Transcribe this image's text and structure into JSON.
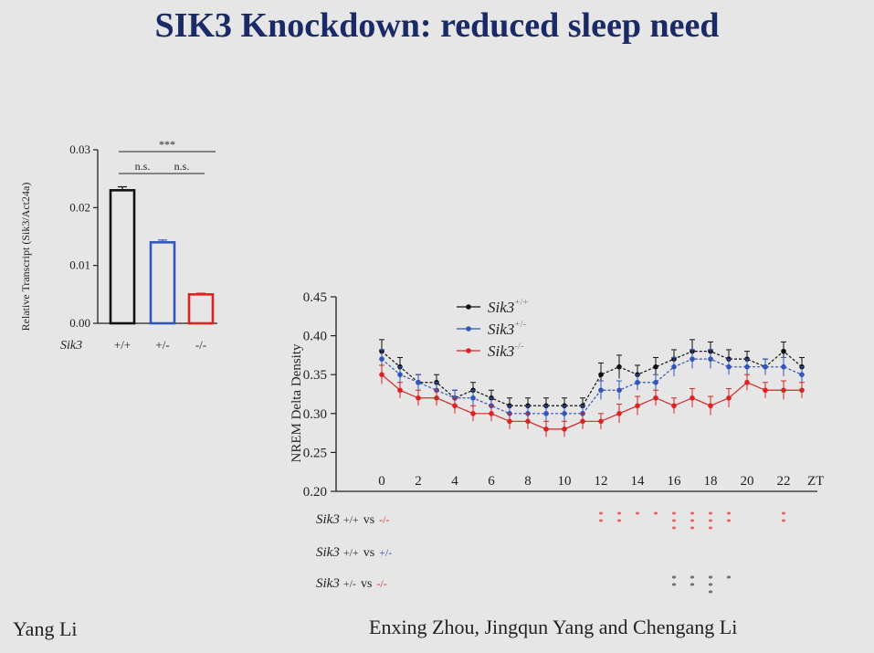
{
  "slide": {
    "title": "SIK3 Knockdown: reduced sleep need",
    "presenter": "Yang Li",
    "authors": "Enxing Zhou, Jingqun Yang and Chengang Li"
  },
  "chart_data": [
    {
      "type": "bar",
      "ylabel": "Relative Transcript (Sik3/Act24a)",
      "xlabel": "Sik3",
      "categories": [
        "+/+",
        "+/-",
        "-/-"
      ],
      "values": [
        0.023,
        0.014,
        0.005
      ],
      "errors": [
        0.0006,
        0.0004,
        0.0002
      ],
      "colors": [
        "#111111",
        "#3355bb",
        "#dd2222"
      ],
      "ylim": [
        0,
        0.03
      ],
      "yticks": [
        "0.00",
        "0.01",
        "0.02",
        "0.03"
      ],
      "significance": [
        {
          "pair": [
            0,
            2
          ],
          "label": "***"
        },
        {
          "pair": [
            0,
            1
          ],
          "label": "n.s."
        },
        {
          "pair": [
            1,
            2
          ],
          "label": "n.s."
        }
      ]
    },
    {
      "type": "line",
      "ylabel": "NREM Delta Density",
      "xlabel": "ZT",
      "xlim": [
        0,
        23
      ],
      "ylim": [
        0.2,
        0.45
      ],
      "xticks": [
        "0",
        "2",
        "4",
        "6",
        "8",
        "10",
        "12",
        "14",
        "16",
        "18",
        "20",
        "22"
      ],
      "yticks": [
        "0.20",
        "0.25",
        "0.30",
        "0.35",
        "0.40",
        "0.45"
      ],
      "x": [
        0,
        1,
        2,
        3,
        4,
        5,
        6,
        7,
        8,
        9,
        10,
        11,
        12,
        13,
        14,
        15,
        16,
        17,
        18,
        19,
        20,
        21,
        22,
        23
      ],
      "series": [
        {
          "name": "Sik3",
          "superscript": "+/+",
          "color": "#111111",
          "values": [
            0.38,
            0.36,
            0.34,
            0.34,
            0.32,
            0.33,
            0.32,
            0.31,
            0.31,
            0.31,
            0.31,
            0.31,
            0.35,
            0.36,
            0.35,
            0.36,
            0.37,
            0.38,
            0.38,
            0.37,
            0.37,
            0.36,
            0.38,
            0.36
          ],
          "errors": [
            0.015,
            0.012,
            0.01,
            0.01,
            0.01,
            0.01,
            0.01,
            0.01,
            0.01,
            0.01,
            0.01,
            0.01,
            0.015,
            0.015,
            0.012,
            0.012,
            0.012,
            0.015,
            0.012,
            0.012,
            0.01,
            0.01,
            0.012,
            0.012
          ]
        },
        {
          "name": "Sik3",
          "superscript": "+/-",
          "color": "#3355bb",
          "values": [
            0.37,
            0.35,
            0.34,
            0.33,
            0.32,
            0.32,
            0.31,
            0.3,
            0.3,
            0.3,
            0.3,
            0.3,
            0.33,
            0.33,
            0.34,
            0.34,
            0.36,
            0.37,
            0.37,
            0.36,
            0.36,
            0.36,
            0.36,
            0.35
          ],
          "errors": [
            0.012,
            0.01,
            0.01,
            0.01,
            0.01,
            0.01,
            0.01,
            0.01,
            0.01,
            0.01,
            0.01,
            0.01,
            0.012,
            0.012,
            0.01,
            0.01,
            0.012,
            0.012,
            0.012,
            0.01,
            0.01,
            0.01,
            0.012,
            0.01
          ]
        },
        {
          "name": "Sik3",
          "superscript": "-/-",
          "color": "#dd2222",
          "values": [
            0.35,
            0.33,
            0.32,
            0.32,
            0.31,
            0.3,
            0.3,
            0.29,
            0.29,
            0.28,
            0.28,
            0.29,
            0.29,
            0.3,
            0.31,
            0.32,
            0.31,
            0.32,
            0.31,
            0.32,
            0.34,
            0.33,
            0.33,
            0.33
          ],
          "errors": [
            0.012,
            0.01,
            0.01,
            0.01,
            0.01,
            0.01,
            0.01,
            0.01,
            0.01,
            0.01,
            0.01,
            0.01,
            0.01,
            0.012,
            0.012,
            0.01,
            0.01,
            0.012,
            0.012,
            0.012,
            0.01,
            0.01,
            0.012,
            0.01
          ]
        }
      ],
      "comparisons": [
        {
          "label": {
            "g1": "+/+",
            "vs": "vs",
            "g2": "-/-",
            "name": "Sik3"
          },
          "stars": [
            {
              "x": 12,
              "n": 2
            },
            {
              "x": 13,
              "n": 2
            },
            {
              "x": 14,
              "n": 1
            },
            {
              "x": 15,
              "n": 1
            },
            {
              "x": 16,
              "n": 3
            },
            {
              "x": 17,
              "n": 3
            },
            {
              "x": 18,
              "n": 3
            },
            {
              "x": 19,
              "n": 2
            },
            {
              "x": 22,
              "n": 2
            }
          ],
          "color": "#dd2222"
        },
        {
          "label": {
            "g1": "+/+",
            "vs": "vs",
            "g2": "+/-",
            "name": "Sik3"
          },
          "stars": [],
          "color": "#3355bb"
        },
        {
          "label": {
            "g1": "+/-",
            "vs": "vs",
            "g2": "-/-",
            "name": "Sik3"
          },
          "stars": [
            {
              "x": 16,
              "n": 2
            },
            {
              "x": 17,
              "n": 2
            },
            {
              "x": 18,
              "n": 3
            },
            {
              "x": 19,
              "n": 1
            }
          ],
          "color": "#222222"
        }
      ]
    }
  ]
}
